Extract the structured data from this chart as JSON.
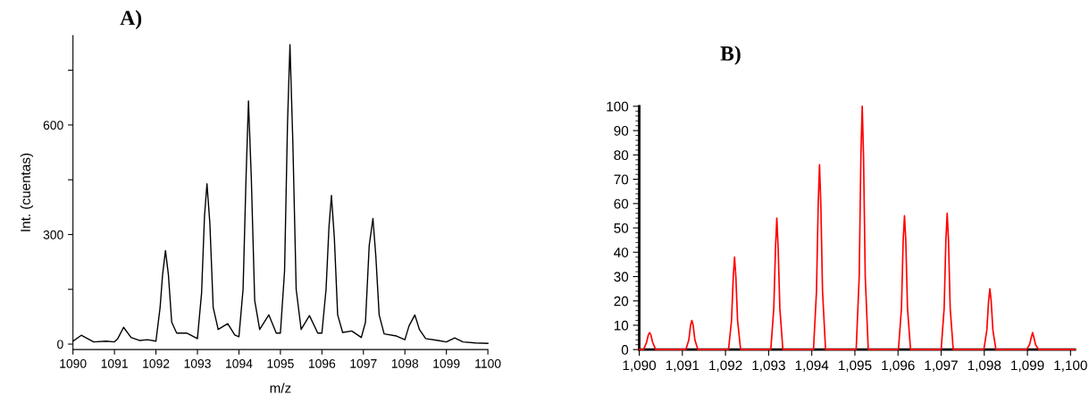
{
  "chart_data": [
    {
      "type": "line",
      "title": "A)",
      "xlabel": "m/z",
      "ylabel": "Int. (cuentas)",
      "xlim": [
        1090,
        1100
      ],
      "xticks": [
        1090,
        1091,
        1092,
        1093,
        1094,
        1095,
        1096,
        1097,
        1098,
        1099,
        1100
      ],
      "ylim": [
        -15,
        845
      ],
      "yticks": [
        0,
        {
          "value": 150,
          "label": null
        },
        300,
        {
          "value": 450,
          "label": null
        },
        600,
        {
          "value": 750,
          "label": null
        }
      ],
      "grid": false,
      "series": [
        {
          "color": "#000000",
          "x": [
            1090.0,
            1090.2,
            1090.5,
            1090.8,
            1091.0,
            1091.08,
            1091.22,
            1091.4,
            1091.6,
            1091.8,
            1092.0,
            1092.1,
            1092.16,
            1092.23,
            1092.3,
            1092.38,
            1092.5,
            1092.75,
            1093.0,
            1093.1,
            1093.17,
            1093.23,
            1093.3,
            1093.38,
            1093.5,
            1093.73,
            1093.9,
            1094.0,
            1094.1,
            1094.17,
            1094.23,
            1094.3,
            1094.38,
            1094.5,
            1094.72,
            1094.9,
            1095.0,
            1095.1,
            1095.17,
            1095.23,
            1095.3,
            1095.38,
            1095.5,
            1095.7,
            1095.9,
            1096.0,
            1096.1,
            1096.17,
            1096.23,
            1096.3,
            1096.38,
            1096.5,
            1096.72,
            1096.95,
            1097.05,
            1097.14,
            1097.23,
            1097.3,
            1097.38,
            1097.5,
            1097.8,
            1098.0,
            1098.1,
            1098.24,
            1098.35,
            1098.5,
            1098.8,
            1099.0,
            1099.2,
            1099.4,
            1099.7,
            1100.0
          ],
          "values": [
            8,
            24,
            6,
            8,
            6,
            15,
            46,
            18,
            10,
            12,
            8,
            100,
            190,
            256,
            190,
            60,
            30,
            30,
            15,
            140,
            350,
            439,
            330,
            100,
            40,
            56,
            25,
            20,
            150,
            450,
            666,
            450,
            120,
            40,
            80,
            30,
            30,
            200,
            600,
            820,
            550,
            150,
            40,
            78,
            30,
            30,
            150,
            320,
            407,
            290,
            80,
            32,
            36,
            18,
            60,
            270,
            344,
            240,
            80,
            28,
            22,
            12,
            50,
            80,
            40,
            15,
            10,
            6,
            17,
            6,
            3,
            2
          ]
        }
      ]
    },
    {
      "type": "line",
      "title": "B)",
      "xlim": [
        1090,
        1100.1
      ],
      "xticks": [
        {
          "value": 1090,
          "label": "1,090"
        },
        {
          "value": 1091,
          "label": "1,091"
        },
        {
          "value": 1092,
          "label": "1,092"
        },
        {
          "value": 1093,
          "label": "1,093"
        },
        {
          "value": 1094,
          "label": "1,094"
        },
        {
          "value": 1095,
          "label": "1,095"
        },
        {
          "value": 1096,
          "label": "1,096"
        },
        {
          "value": 1097,
          "label": "1,097"
        },
        {
          "value": 1098,
          "label": "1,098"
        },
        {
          "value": 1099,
          "label": "1,099"
        },
        {
          "value": 1100,
          "label": "1,100"
        }
      ],
      "ylim": [
        0,
        100
      ],
      "yticks": [
        0,
        10,
        20,
        30,
        40,
        50,
        60,
        70,
        80,
        90,
        100
      ],
      "grid": false,
      "series": [
        {
          "color": "#ff0000",
          "x": [
            1090.0,
            1090.1,
            1090.17,
            1090.21,
            1090.24,
            1090.27,
            1090.31,
            1090.38,
            1091.08,
            1091.15,
            1091.19,
            1091.22,
            1091.25,
            1091.29,
            1091.36,
            1092.07,
            1092.14,
            1092.18,
            1092.21,
            1092.24,
            1092.28,
            1092.35,
            1093.05,
            1093.12,
            1093.16,
            1093.19,
            1093.22,
            1093.26,
            1093.33,
            1094.04,
            1094.11,
            1094.15,
            1094.18,
            1094.21,
            1094.25,
            1094.32,
            1095.03,
            1095.1,
            1095.14,
            1095.17,
            1095.2,
            1095.24,
            1095.31,
            1096.01,
            1096.08,
            1096.12,
            1096.15,
            1096.18,
            1096.22,
            1096.29,
            1097.0,
            1097.07,
            1097.11,
            1097.14,
            1097.17,
            1097.21,
            1097.28,
            1097.99,
            1098.06,
            1098.1,
            1098.13,
            1098.16,
            1098.2,
            1098.27,
            1098.98,
            1099.05,
            1099.09,
            1099.12,
            1099.15,
            1099.19,
            1099.26,
            1100.1
          ],
          "values": [
            0,
            0,
            3,
            6,
            7,
            6,
            3,
            0,
            0,
            4,
            10,
            12,
            10,
            4,
            0,
            0,
            12,
            30,
            38,
            30,
            12,
            0,
            0,
            17,
            42,
            54,
            42,
            17,
            0,
            0,
            24,
            60,
            76,
            60,
            24,
            0,
            0,
            30,
            80,
            100,
            80,
            30,
            0,
            0,
            17,
            45,
            55,
            45,
            17,
            0,
            0,
            17,
            45,
            56,
            45,
            17,
            0,
            0,
            8,
            20,
            25,
            20,
            8,
            0,
            0,
            2,
            5,
            7,
            5,
            2,
            0,
            0
          ]
        }
      ]
    }
  ]
}
